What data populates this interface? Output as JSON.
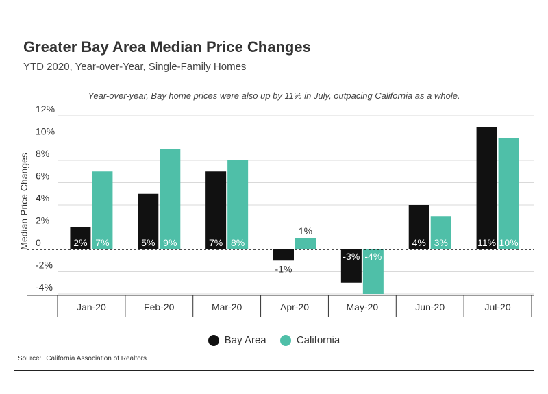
{
  "title": "Greater Bay Area Median Price Changes",
  "subtitle": "YTD 2020, Year-over-Year, Single-Family Homes",
  "annotation": "Year-over-year, Bay home prices were also up by 11% in July, outpacing California as a whole.",
  "source": {
    "label": "Source:",
    "text": "California Association of Realtors"
  },
  "colors": {
    "bay_area": "#111111",
    "california": "#4fbfa8"
  },
  "chart_data": {
    "type": "bar",
    "categories": [
      "Jan-20",
      "Feb-20",
      "Mar-20",
      "Apr-20",
      "May-20",
      "Jun-20",
      "Jul-20"
    ],
    "series": [
      {
        "name": "Bay Area",
        "values": [
          2,
          5,
          7,
          -1,
          -3,
          4,
          11
        ],
        "labels": [
          "2%",
          "5%",
          "7%",
          "-1%",
          "-3%",
          "4%",
          "11%"
        ]
      },
      {
        "name": "California",
        "values": [
          7,
          9,
          8,
          1,
          -4,
          3,
          10
        ],
        "labels": [
          "7%",
          "9%",
          "8%",
          "1%",
          "-4%",
          "3%",
          "10%"
        ]
      }
    ],
    "ylabel": "Median Price Changes",
    "ylim": [
      -5,
      12
    ],
    "yticks": [
      12,
      10,
      8,
      6,
      4,
      2,
      0,
      -2,
      -4
    ],
    "ytick_labels": [
      "12%",
      "10%",
      "8%",
      "6%",
      "4%",
      "2%",
      "0",
      "-2%",
      "-4%"
    ],
    "grid": true,
    "legend_position": "bottom-center"
  }
}
